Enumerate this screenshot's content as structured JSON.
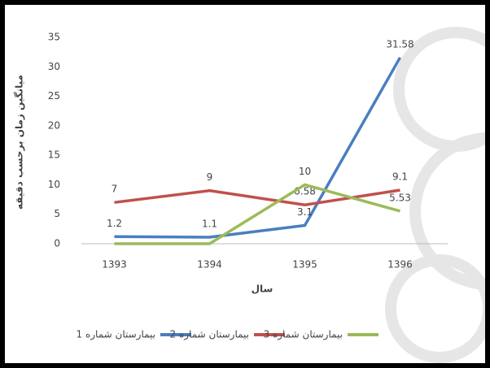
{
  "chart_data": {
    "type": "line",
    "y_label": "میانگین زمان برحسب دقیقه",
    "x_label": "سال",
    "categories": [
      "1393",
      "1394",
      "1395",
      "1396"
    ],
    "series": [
      {
        "name": "بیمارستان شماره 1",
        "color": "#4a7ec0",
        "values": [
          1.2,
          1.1,
          3.1,
          31.58
        ],
        "value_labels": [
          "1.2",
          "1.1",
          "3.1",
          "31.58"
        ]
      },
      {
        "name": "بیمارستان شماره 2",
        "color": "#c0504d",
        "values": [
          7,
          9,
          6.58,
          9.1
        ],
        "value_labels": [
          "7",
          "9",
          "6.58",
          "9.1"
        ]
      },
      {
        "name": "بیمارستان شماره 3",
        "color": "#9bbb59",
        "values": [
          0,
          0,
          10,
          5.53
        ],
        "value_labels": [
          null,
          null,
          "10",
          "5.53"
        ]
      }
    ],
    "ylim": [
      0,
      35
    ],
    "yticks": [
      0,
      5,
      10,
      15,
      20,
      25,
      30,
      35
    ],
    "grid": false,
    "legend": "bottom"
  }
}
